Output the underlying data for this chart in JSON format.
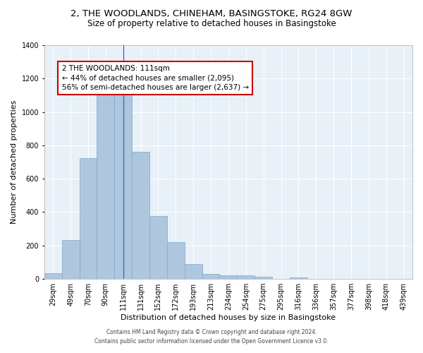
{
  "title_line1": "2, THE WOODLANDS, CHINEHAM, BASINGSTOKE, RG24 8GW",
  "title_line2": "Size of property relative to detached houses in Basingstoke",
  "xlabel": "Distribution of detached houses by size in Basingstoke",
  "ylabel": "Number of detached properties",
  "categories": [
    "29sqm",
    "49sqm",
    "70sqm",
    "90sqm",
    "111sqm",
    "131sqm",
    "152sqm",
    "172sqm",
    "193sqm",
    "213sqm",
    "234sqm",
    "254sqm",
    "275sqm",
    "295sqm",
    "316sqm",
    "336sqm",
    "357sqm",
    "377sqm",
    "398sqm",
    "418sqm",
    "439sqm"
  ],
  "values": [
    33,
    235,
    725,
    1110,
    1120,
    760,
    375,
    220,
    90,
    30,
    22,
    22,
    15,
    0,
    10,
    0,
    0,
    0,
    0,
    0,
    0
  ],
  "bar_color": "#aec6de",
  "bar_edge_color": "#7aaac8",
  "vline_x": 4,
  "vline_color": "#3366aa",
  "annotation_box_text": "2 THE WOODLANDS: 111sqm\n← 44% of detached houses are smaller (2,095)\n56% of semi-detached houses are larger (2,637) →",
  "box_color": "#cc0000",
  "ylim": [
    0,
    1400
  ],
  "background_color": "#e8f0f8",
  "grid_color": "#ffffff",
  "footer_line1": "Contains HM Land Registry data © Crown copyright and database right 2024.",
  "footer_line2": "Contains public sector information licensed under the Open Government Licence v3.0.",
  "title_fontsize": 9.5,
  "subtitle_fontsize": 8.5,
  "ylabel_fontsize": 8,
  "xlabel_fontsize": 8,
  "tick_fontsize": 7,
  "ann_fontsize": 7.5,
  "footer_fontsize": 5.5
}
